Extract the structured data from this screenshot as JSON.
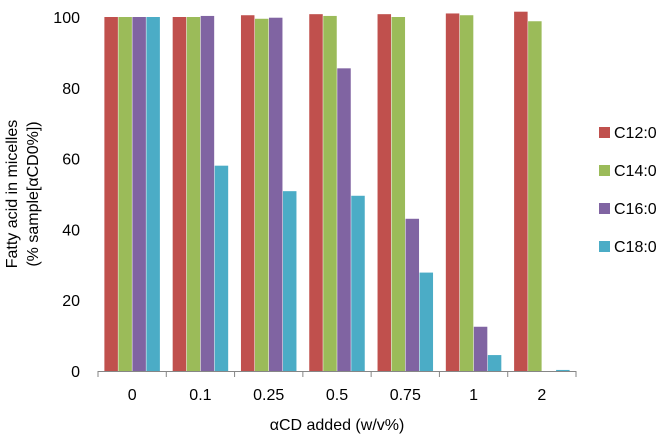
{
  "chart_data": {
    "type": "bar",
    "xlabel": "αCD added (w/v%)",
    "ylabel_line1": "Fatty acid in micelles",
    "ylabel_line2": "(% sample[αCD0%])",
    "ylim": [
      0,
      100
    ],
    "yticks": [
      0,
      20,
      40,
      60,
      80,
      100
    ],
    "grid": false,
    "legend_position": "right",
    "categories": [
      "0",
      "0.1",
      "0.25",
      "0.5",
      "0.75",
      "1",
      "2"
    ],
    "series": [
      {
        "name": "C12:0",
        "color": "#C0504D",
        "values": [
          100,
          100,
          100.5,
          100.8,
          100.8,
          101,
          101.5
        ]
      },
      {
        "name": "C14:0",
        "color": "#9BBB59",
        "values": [
          100,
          100,
          99.5,
          100.3,
          100,
          100.5,
          98.8
        ]
      },
      {
        "name": "C16:0",
        "color": "#8064A2",
        "values": [
          100,
          100.3,
          99.8,
          85.5,
          43,
          12.5,
          0
        ]
      },
      {
        "name": "C18:0",
        "color": "#4BACC6",
        "values": [
          100,
          58,
          50.8,
          49.5,
          27.8,
          4.5,
          0.3
        ]
      }
    ]
  }
}
